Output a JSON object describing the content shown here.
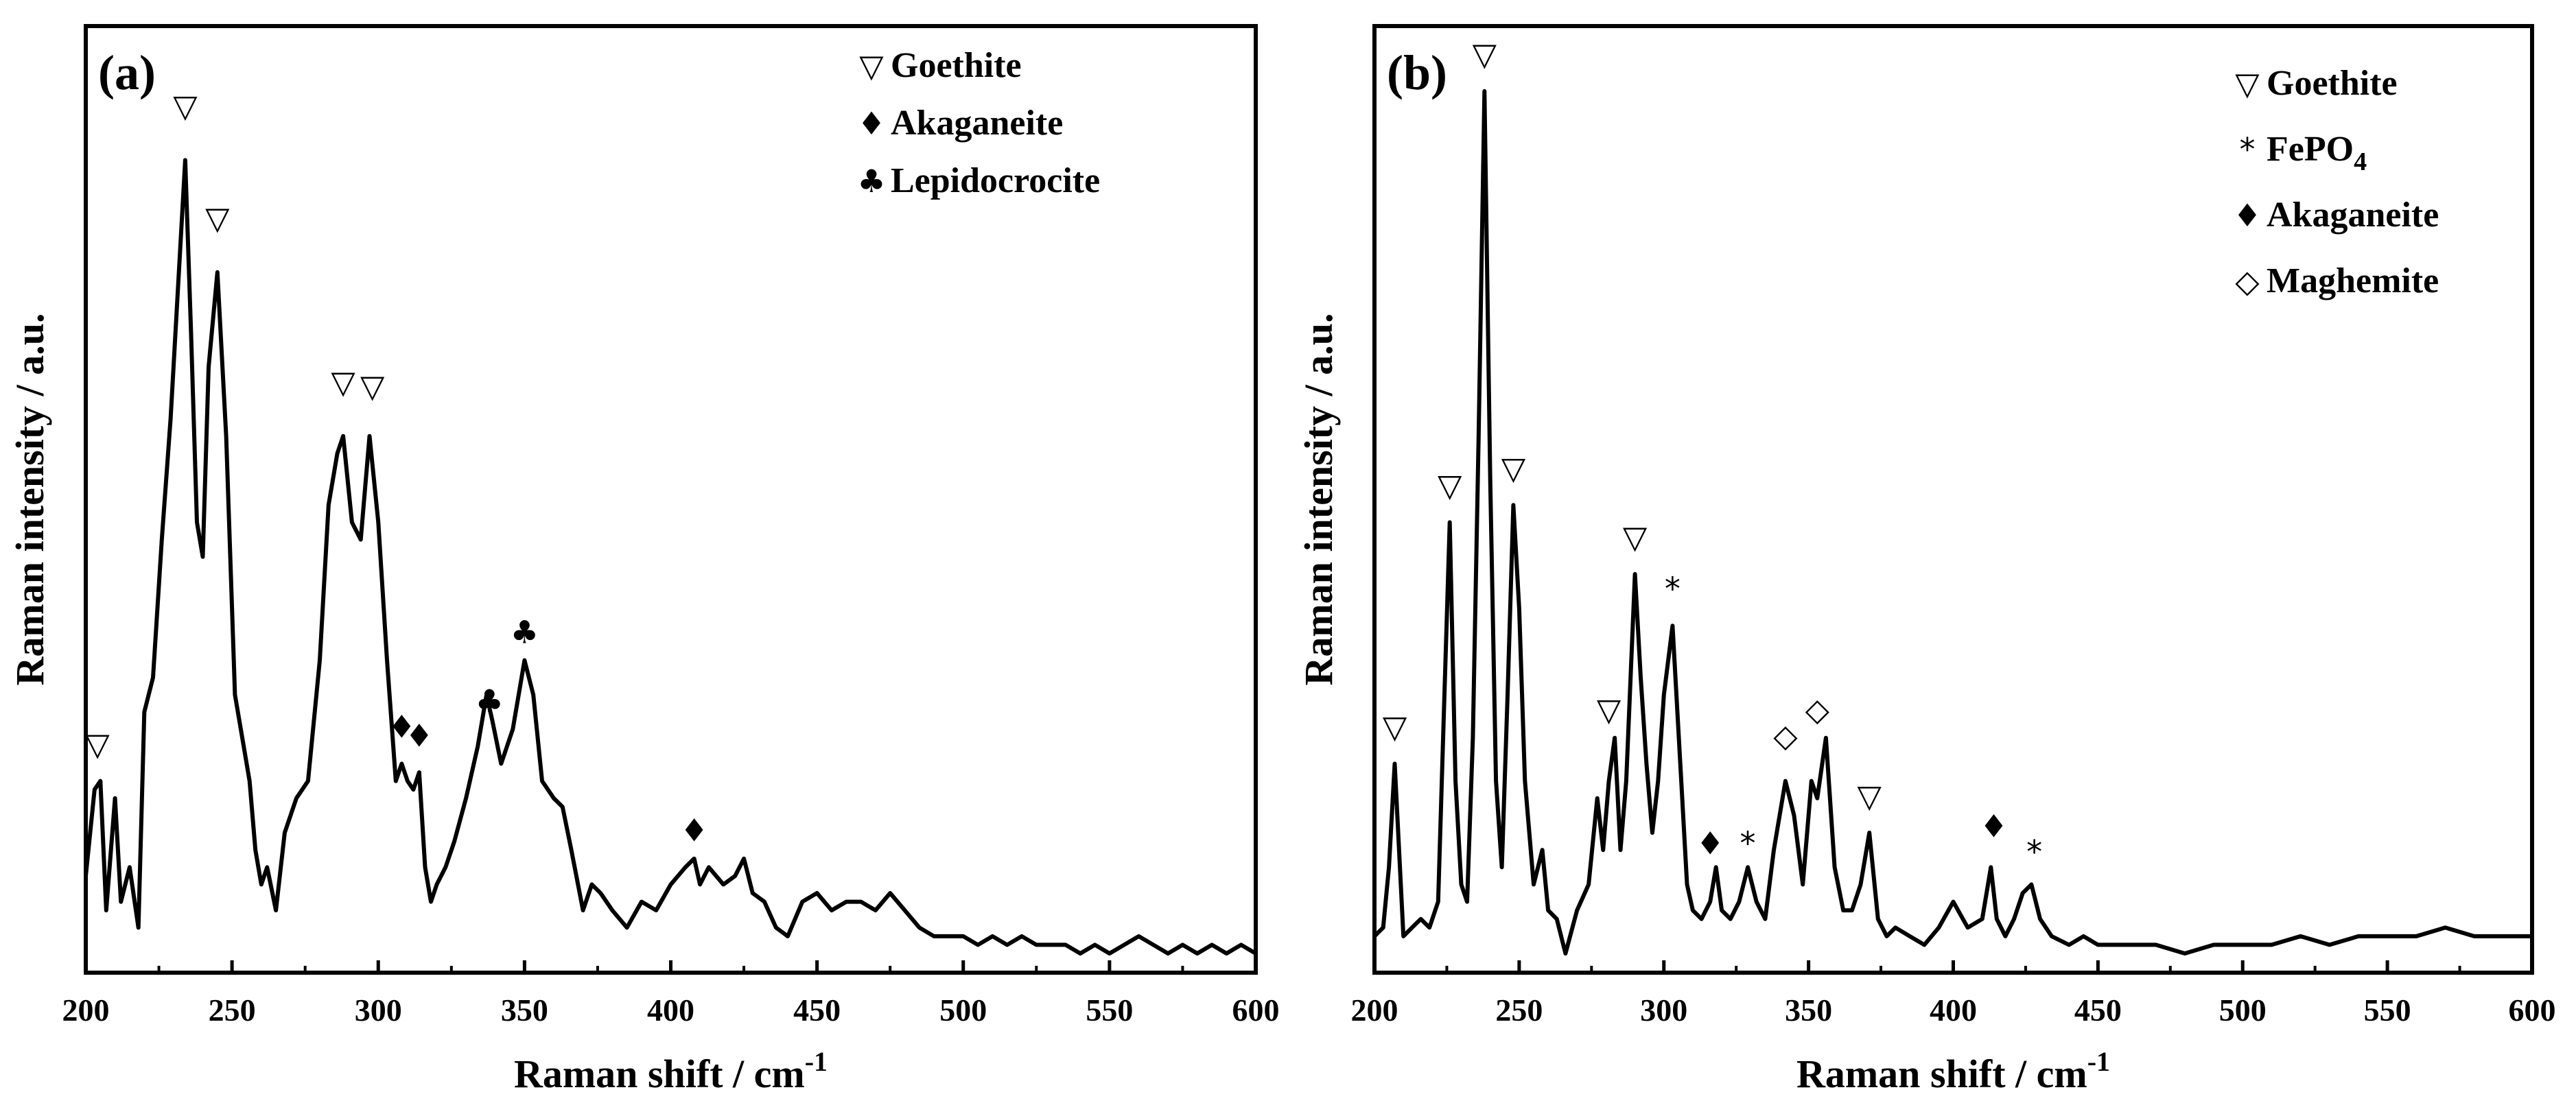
{
  "chart_data": [
    {
      "type": "line",
      "panel_label": "(a)",
      "xlabel": "Raman shift / cm",
      "xlabel_sup": "-1",
      "ylabel": "Raman intensity / a.u.",
      "xlim": [
        200,
        600
      ],
      "ylim": [
        0,
        1.05
      ],
      "xticks": [
        200,
        250,
        300,
        350,
        400,
        450,
        500,
        550,
        600
      ],
      "legend": [
        {
          "symbol": "▽",
          "label": "Goethite",
          "sub": ""
        },
        {
          "symbol": "♦",
          "label": "Akaganeite",
          "sub": ""
        },
        {
          "symbol": "♣",
          "label": "Lepidocrocite",
          "sub": ""
        }
      ],
      "series": [
        {
          "name": "spectrum",
          "x": [
            200,
            203,
            205,
            207,
            210,
            212,
            215,
            218,
            220,
            223,
            226,
            229,
            232,
            234,
            236,
            238,
            240,
            242,
            245,
            248,
            251,
            254,
            256,
            258,
            260,
            262,
            265,
            268,
            272,
            276,
            280,
            283,
            286,
            288,
            291,
            294,
            297,
            300,
            303,
            306,
            308,
            310,
            312,
            314,
            316,
            318,
            320,
            323,
            326,
            330,
            334,
            337,
            339,
            342,
            346,
            350,
            353,
            356,
            360,
            363,
            366,
            370,
            373,
            376,
            380,
            385,
            390,
            395,
            400,
            405,
            408,
            410,
            413,
            418,
            422,
            425,
            428,
            432,
            436,
            440,
            445,
            450,
            455,
            460,
            465,
            470,
            475,
            480,
            485,
            490,
            495,
            500,
            505,
            510,
            515,
            520,
            525,
            530,
            535,
            540,
            545,
            550,
            555,
            560,
            565,
            570,
            575,
            580,
            585,
            590,
            595,
            600
          ],
          "y": [
            0.09,
            0.19,
            0.2,
            0.05,
            0.18,
            0.06,
            0.1,
            0.03,
            0.28,
            0.32,
            0.48,
            0.62,
            0.8,
            0.92,
            0.72,
            0.5,
            0.46,
            0.68,
            0.79,
            0.6,
            0.3,
            0.24,
            0.2,
            0.12,
            0.08,
            0.1,
            0.05,
            0.14,
            0.18,
            0.2,
            0.34,
            0.52,
            0.58,
            0.6,
            0.5,
            0.48,
            0.6,
            0.5,
            0.34,
            0.2,
            0.22,
            0.2,
            0.19,
            0.21,
            0.1,
            0.06,
            0.08,
            0.1,
            0.13,
            0.18,
            0.24,
            0.3,
            0.27,
            0.22,
            0.26,
            0.34,
            0.3,
            0.2,
            0.18,
            0.17,
            0.12,
            0.05,
            0.08,
            0.07,
            0.05,
            0.03,
            0.06,
            0.05,
            0.08,
            0.1,
            0.11,
            0.08,
            0.1,
            0.08,
            0.09,
            0.11,
            0.07,
            0.06,
            0.03,
            0.02,
            0.06,
            0.07,
            0.05,
            0.06,
            0.06,
            0.05,
            0.07,
            0.05,
            0.03,
            0.02,
            0.02,
            0.02,
            0.01,
            0.02,
            0.01,
            0.02,
            0.01,
            0.01,
            0.01,
            0.0,
            0.01,
            0.0,
            0.01,
            0.02,
            0.01,
            0.0,
            0.01,
            0.0,
            0.01,
            0.0,
            0.01,
            0.0
          ]
        }
      ],
      "annotations": [
        {
          "symbol": "▽",
          "x": 204,
          "y": 0.23
        },
        {
          "symbol": "▽",
          "x": 234,
          "y": 0.97
        },
        {
          "symbol": "▽",
          "x": 245,
          "y": 0.84
        },
        {
          "symbol": "▽",
          "x": 288,
          "y": 0.65
        },
        {
          "symbol": "▽",
          "x": 298,
          "y": 0.645
        },
        {
          "symbol": "♦",
          "x": 308,
          "y": 0.25
        },
        {
          "symbol": "♦",
          "x": 314,
          "y": 0.24
        },
        {
          "symbol": "♣",
          "x": 338,
          "y": 0.28
        },
        {
          "symbol": "♣",
          "x": 350,
          "y": 0.36
        },
        {
          "symbol": "♦",
          "x": 408,
          "y": 0.13
        }
      ]
    },
    {
      "type": "line",
      "panel_label": "(b)",
      "xlabel": "Raman shift / cm",
      "xlabel_sup": "-1",
      "ylabel": "Raman intensity / a.u.",
      "xlim": [
        200,
        600
      ],
      "ylim": [
        0,
        1.05
      ],
      "xticks": [
        200,
        250,
        300,
        350,
        400,
        450,
        500,
        550,
        600
      ],
      "legend": [
        {
          "symbol": "▽",
          "label": "Goethite",
          "sub": ""
        },
        {
          "symbol": "*",
          "label": "FePO",
          "sub": "4"
        },
        {
          "symbol": "♦",
          "label": "Akaganeite",
          "sub": ""
        },
        {
          "symbol": "◇",
          "label": "Maghemite",
          "sub": ""
        }
      ],
      "series": [
        {
          "name": "spectrum",
          "x": [
            200,
            203,
            205,
            207,
            210,
            213,
            216,
            219,
            222,
            224,
            226,
            228,
            230,
            232,
            234,
            236,
            238,
            240,
            242,
            244,
            246,
            248,
            250,
            252,
            255,
            258,
            260,
            263,
            266,
            270,
            274,
            277,
            279,
            281,
            283,
            285,
            287,
            290,
            292,
            294,
            296,
            298,
            300,
            303,
            306,
            308,
            310,
            313,
            316,
            318,
            320,
            323,
            326,
            329,
            332,
            335,
            338,
            342,
            345,
            348,
            351,
            353,
            356,
            359,
            362,
            365,
            368,
            371,
            374,
            377,
            380,
            385,
            390,
            395,
            400,
            405,
            410,
            413,
            415,
            418,
            421,
            424,
            427,
            430,
            434,
            440,
            445,
            450,
            460,
            470,
            480,
            490,
            500,
            510,
            520,
            530,
            540,
            550,
            560,
            570,
            580,
            590,
            600
          ],
          "y": [
            0.02,
            0.03,
            0.1,
            0.22,
            0.02,
            0.03,
            0.04,
            0.03,
            0.06,
            0.28,
            0.5,
            0.2,
            0.08,
            0.06,
            0.25,
            0.6,
            1.0,
            0.55,
            0.2,
            0.1,
            0.3,
            0.52,
            0.4,
            0.2,
            0.08,
            0.12,
            0.05,
            0.04,
            0.0,
            0.05,
            0.08,
            0.18,
            0.12,
            0.2,
            0.25,
            0.12,
            0.2,
            0.44,
            0.32,
            0.22,
            0.14,
            0.2,
            0.3,
            0.38,
            0.2,
            0.08,
            0.05,
            0.04,
            0.06,
            0.1,
            0.05,
            0.04,
            0.06,
            0.1,
            0.06,
            0.04,
            0.12,
            0.2,
            0.16,
            0.08,
            0.2,
            0.18,
            0.25,
            0.1,
            0.05,
            0.05,
            0.08,
            0.14,
            0.04,
            0.02,
            0.03,
            0.02,
            0.01,
            0.03,
            0.06,
            0.03,
            0.04,
            0.1,
            0.04,
            0.02,
            0.04,
            0.07,
            0.08,
            0.04,
            0.02,
            0.01,
            0.02,
            0.01,
            0.01,
            0.01,
            0.0,
            0.01,
            0.01,
            0.01,
            0.02,
            0.01,
            0.02,
            0.02,
            0.02,
            0.03,
            0.02,
            0.02,
            0.02
          ]
        }
      ],
      "annotations": [
        {
          "symbol": "▽",
          "x": 207,
          "y": 0.25
        },
        {
          "symbol": "▽",
          "x": 226,
          "y": 0.53
        },
        {
          "symbol": "▽",
          "x": 238,
          "y": 1.03
        },
        {
          "symbol": "▽",
          "x": 248,
          "y": 0.55
        },
        {
          "symbol": "▽",
          "x": 281,
          "y": 0.27
        },
        {
          "symbol": "▽",
          "x": 290,
          "y": 0.47
        },
        {
          "symbol": "*",
          "x": 303,
          "y": 0.41
        },
        {
          "symbol": "♦",
          "x": 316,
          "y": 0.115
        },
        {
          "symbol": "*",
          "x": 329,
          "y": 0.115
        },
        {
          "symbol": "◇",
          "x": 342,
          "y": 0.24
        },
        {
          "symbol": "◇",
          "x": 353,
          "y": 0.27
        },
        {
          "symbol": "▽",
          "x": 371,
          "y": 0.17
        },
        {
          "symbol": "♦",
          "x": 414,
          "y": 0.135
        },
        {
          "symbol": "*",
          "x": 428,
          "y": 0.105
        }
      ]
    }
  ]
}
